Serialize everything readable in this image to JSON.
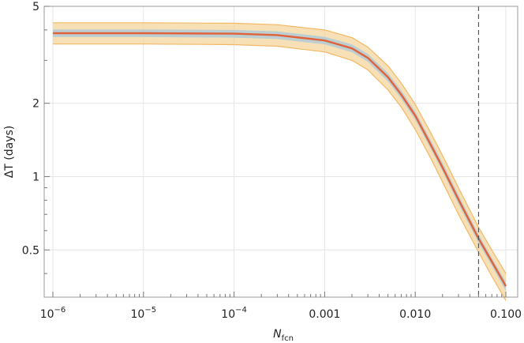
{
  "chart_data": {
    "type": "line",
    "xscale": "log",
    "yscale": "log",
    "xlim": [
      1e-06,
      0.1
    ],
    "ylim": [
      0.32,
      5
    ],
    "grid": true,
    "x_ticks": [
      {
        "value": 1e-06,
        "base": "10",
        "exp": "−6"
      },
      {
        "value": 1e-05,
        "base": "10",
        "exp": "−5"
      },
      {
        "value": 0.0001,
        "base": "10",
        "exp": "−4"
      },
      {
        "value": 0.001,
        "label": "0.001"
      },
      {
        "value": 0.01,
        "label": "0.010"
      },
      {
        "value": 0.1,
        "label": "0.100"
      }
    ],
    "y_ticks": [
      {
        "value": 0.5,
        "label": "0.5"
      },
      {
        "value": 1,
        "label": "1"
      },
      {
        "value": 2,
        "label": "2"
      },
      {
        "value": 5,
        "label": "5"
      }
    ],
    "xlabel_main": "N",
    "xlabel_sub": "fcn",
    "ylabel": "ΔT (days)",
    "vline_x": 0.05,
    "x": [
      1e-06,
      1e-05,
      0.0001,
      0.0003,
      0.001,
      0.002,
      0.003,
      0.005,
      0.007,
      0.01,
      0.015,
      0.02,
      0.03,
      0.05,
      0.07,
      0.1
    ],
    "series": [
      {
        "role": "outer-band-upper",
        "color": "#f5cf8f",
        "values": [
          4.28,
          4.28,
          4.26,
          4.2,
          4.0,
          3.72,
          3.4,
          2.85,
          2.42,
          1.98,
          1.5,
          1.22,
          0.9,
          0.62,
          0.5,
          0.4
        ]
      },
      {
        "role": "outer-band-lower",
        "color": "#f5cf8f",
        "values": [
          3.5,
          3.5,
          3.48,
          3.43,
          3.25,
          3.0,
          2.74,
          2.27,
          1.93,
          1.56,
          1.18,
          0.95,
          0.7,
          0.49,
          0.39,
          0.31
        ]
      },
      {
        "role": "inner-band-upper",
        "color": "#b8ccd4",
        "values": [
          4.02,
          4.02,
          4.0,
          3.95,
          3.75,
          3.49,
          3.19,
          2.66,
          2.26,
          1.85,
          1.4,
          1.14,
          0.84,
          0.58,
          0.465,
          0.37
        ]
      },
      {
        "role": "inner-band-lower",
        "color": "#b8ccd4",
        "values": [
          3.74,
          3.74,
          3.72,
          3.67,
          3.49,
          3.24,
          2.96,
          2.46,
          2.09,
          1.71,
          1.29,
          1.05,
          0.77,
          0.535,
          0.43,
          0.34
        ]
      },
      {
        "role": "central",
        "color": "#e0623a",
        "values": [
          3.88,
          3.88,
          3.86,
          3.81,
          3.62,
          3.36,
          3.07,
          2.56,
          2.17,
          1.78,
          1.34,
          1.09,
          0.805,
          0.557,
          0.448,
          0.355
        ]
      }
    ]
  }
}
